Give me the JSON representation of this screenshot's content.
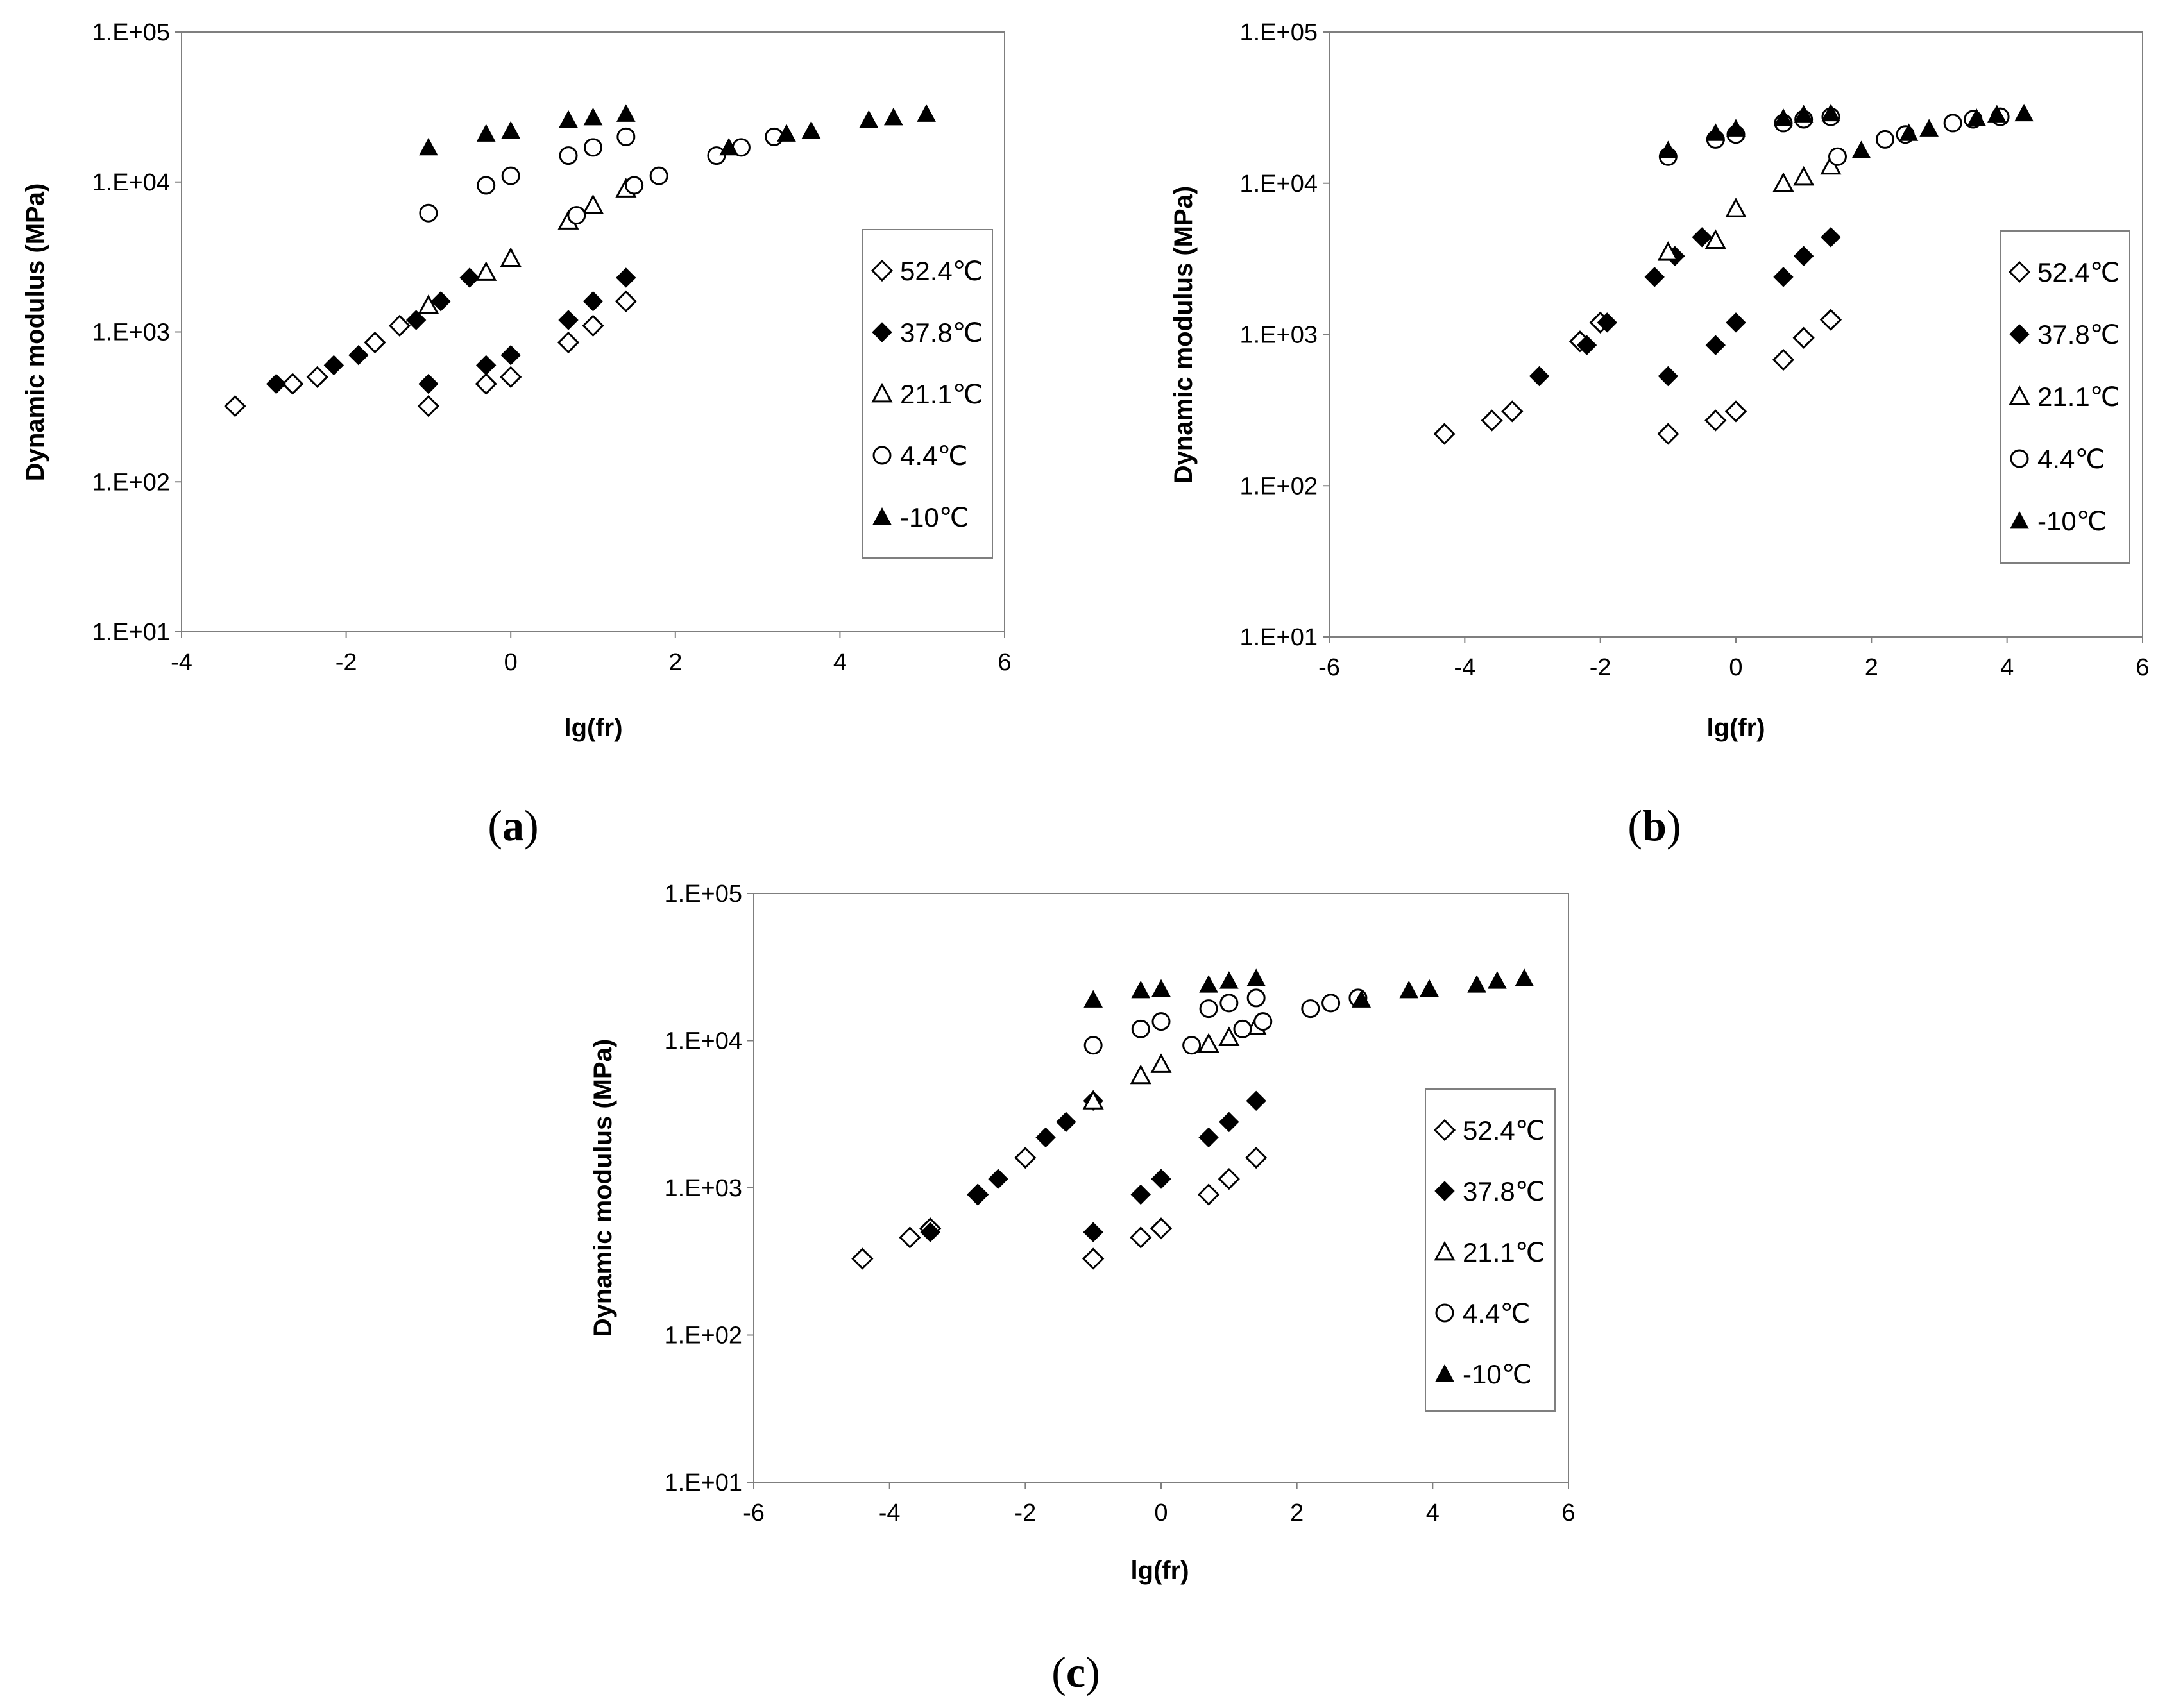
{
  "figure": {
    "panel_labels": [
      "a",
      "b",
      "c"
    ]
  },
  "chart_data": [
    {
      "type": "scatter",
      "panel": "a",
      "xlabel": "lg(fr)",
      "ylabel": "Dynamic modulus  (MPa)",
      "xlim": [
        -4,
        6
      ],
      "ylim": [
        10,
        100000
      ],
      "yscale": "log",
      "xticks": [
        "-4",
        "-2",
        "0",
        "2",
        "4",
        "6"
      ],
      "yticks": [
        "1.E+01",
        "1.E+02",
        "1.E+03",
        "1.E+04",
        "1.E+05"
      ],
      "legend": [
        "52.4℃",
        "37.8℃",
        "21.1℃",
        "4.4℃",
        "-10℃"
      ],
      "series": [
        {
          "name": "52.4℃",
          "marker": "diamond-open",
          "x": [
            -3.35,
            -2.65,
            -2.35,
            -1.65,
            -1.35,
            -1.0,
            -0.3,
            0.0,
            0.7,
            1.0,
            1.4
          ],
          "y": [
            320,
            450,
            500,
            850,
            1100,
            320,
            450,
            500,
            850,
            1100,
            1600
          ]
        },
        {
          "name": "37.8℃",
          "marker": "diamond-filled",
          "x": [
            -2.85,
            -2.15,
            -1.85,
            -1.15,
            -0.85,
            -0.5,
            -1.0,
            -0.3,
            0.0,
            0.7,
            1.0,
            1.4
          ],
          "y": [
            450,
            600,
            700,
            1200,
            1600,
            2300,
            450,
            600,
            700,
            1200,
            1600,
            2300
          ]
        },
        {
          "name": "21.1℃",
          "marker": "triangle-open",
          "x": [
            -1.0,
            -0.3,
            0.0,
            0.7,
            1.0,
            1.4
          ],
          "y": [
            1500,
            2500,
            3100,
            5500,
            7000,
            9000
          ]
        },
        {
          "name": "4.4℃",
          "marker": "circle-open",
          "x": [
            -1.0,
            -0.3,
            0.0,
            0.7,
            1.0,
            1.4,
            0.8,
            1.5,
            1.8,
            2.5,
            2.8,
            3.2
          ],
          "y": [
            6200,
            9500,
            11000,
            15000,
            17000,
            20000,
            6000,
            9500,
            11000,
            15000,
            17000,
            20000
          ]
        },
        {
          "name": "-10℃",
          "marker": "triangle-filled",
          "x": [
            -1.0,
            -0.3,
            0.0,
            0.7,
            1.0,
            1.4,
            2.65,
            3.35,
            3.65,
            4.35,
            4.65,
            5.05
          ],
          "y": [
            17000,
            21000,
            22000,
            26000,
            27000,
            28500,
            17000,
            21000,
            22000,
            26000,
            27000,
            28500
          ]
        }
      ]
    },
    {
      "type": "scatter",
      "panel": "b",
      "xlabel": "lg(fr)",
      "ylabel": "Dynamic modulus  (MPa)",
      "xlim": [
        -6,
        6
      ],
      "ylim": [
        10,
        100000
      ],
      "yscale": "log",
      "xticks": [
        "-6",
        "-4",
        "-2",
        "0",
        "2",
        "4",
        "6"
      ],
      "yticks": [
        "1.E+01",
        "1.E+02",
        "1.E+03",
        "1.E+04",
        "1.E+05"
      ],
      "legend": [
        "52.4℃",
        "37.8℃",
        "21.1℃",
        "4.4℃",
        "-10℃"
      ],
      "series": [
        {
          "name": "52.4℃",
          "marker": "diamond-open",
          "x": [
            -4.3,
            -3.6,
            -3.3,
            -2.3,
            -2.0,
            -1.0,
            -0.3,
            0.0,
            0.7,
            1.0,
            1.4
          ],
          "y": [
            220,
            270,
            310,
            900,
            1200,
            220,
            270,
            310,
            680,
            950,
            1250
          ]
        },
        {
          "name": "37.8℃",
          "marker": "diamond-filled",
          "x": [
            -2.9,
            -2.2,
            -1.9,
            -1.2,
            -0.9,
            -0.5,
            -1.0,
            -0.3,
            0.0,
            0.7,
            1.0,
            1.4
          ],
          "y": [
            530,
            850,
            1200,
            2400,
            3300,
            4400,
            530,
            850,
            1200,
            2400,
            3300,
            4400
          ]
        },
        {
          "name": "21.1℃",
          "marker": "triangle-open",
          "x": [
            -1.0,
            -0.3,
            0.0,
            0.7,
            1.0,
            1.4
          ],
          "y": [
            3500,
            4200,
            6800,
            10000,
            11000,
            13000
          ]
        },
        {
          "name": "4.4℃",
          "marker": "circle-open",
          "x": [
            -1.0,
            -0.3,
            0.0,
            0.7,
            1.0,
            1.4,
            1.5,
            2.2,
            2.5,
            3.2,
            3.5,
            3.9
          ],
          "y": [
            15000,
            19500,
            21000,
            25000,
            26500,
            27500,
            15000,
            19500,
            21000,
            25000,
            26500,
            27500
          ]
        },
        {
          "name": "-10℃",
          "marker": "triangle-filled",
          "x": [
            -1.0,
            -0.3,
            0.0,
            0.7,
            1.0,
            1.4,
            1.85,
            2.55,
            2.85,
            3.55,
            3.85,
            4.25
          ],
          "y": [
            16500,
            21500,
            23000,
            27000,
            28500,
            29000,
            16500,
            21500,
            23000,
            27000,
            28500,
            29000
          ]
        }
      ]
    },
    {
      "type": "scatter",
      "panel": "c",
      "xlabel": "lg(fr)",
      "ylabel": "Dynamic modulus (MPa)",
      "xlim": [
        -6,
        6
      ],
      "ylim": [
        10,
        100000
      ],
      "yscale": "log",
      "xticks": [
        "-6",
        "-4",
        "-2",
        "0",
        "2",
        "4",
        "6"
      ],
      "yticks": [
        "1.E+01",
        "1.E+02",
        "1.E+03",
        "1.E+04",
        "1.E+05"
      ],
      "legend": [
        "52.4℃",
        "37.8℃",
        "21.1℃",
        "4.4℃",
        "-10℃"
      ],
      "series": [
        {
          "name": "52.4℃",
          "marker": "diamond-open",
          "x": [
            -4.4,
            -3.7,
            -3.4,
            -2.7,
            -2.0,
            -1.0,
            -0.3,
            0.0,
            0.7,
            1.0,
            1.4
          ],
          "y": [
            330,
            460,
            530,
            900,
            1600,
            330,
            460,
            530,
            900,
            1150,
            1600
          ]
        },
        {
          "name": "37.8℃",
          "marker": "diamond-filled",
          "x": [
            -3.4,
            -2.7,
            -2.4,
            -1.7,
            -1.4,
            -1.0,
            -1.0,
            -0.3,
            0.0,
            0.7,
            1.0,
            1.4
          ],
          "y": [
            500,
            900,
            1150,
            2200,
            2800,
            3900,
            500,
            900,
            1150,
            2200,
            2800,
            3900
          ]
        },
        {
          "name": "21.1℃",
          "marker": "triangle-open",
          "x": [
            -1.0,
            -0.3,
            0.0,
            0.7,
            1.0,
            1.4
          ],
          "y": [
            3900,
            5800,
            6900,
            9500,
            10500,
            12500
          ]
        },
        {
          "name": "4.4℃",
          "marker": "circle-open",
          "x": [
            -1.0,
            -0.3,
            0.0,
            0.7,
            1.0,
            1.4,
            0.45,
            1.2,
            1.5,
            2.2,
            2.5,
            2.9
          ],
          "y": [
            9300,
            12000,
            13500,
            16500,
            18000,
            19500,
            9300,
            12000,
            13500,
            16500,
            18000,
            19500
          ]
        },
        {
          "name": "-10℃",
          "marker": "triangle-filled",
          "x": [
            -1.0,
            -0.3,
            0.0,
            0.7,
            1.0,
            1.4,
            2.95,
            3.65,
            3.95,
            4.65,
            4.95,
            5.35
          ],
          "y": [
            19000,
            22000,
            22500,
            24000,
            25500,
            26500,
            19000,
            22000,
            22500,
            24000,
            25500,
            26500
          ]
        }
      ]
    }
  ]
}
